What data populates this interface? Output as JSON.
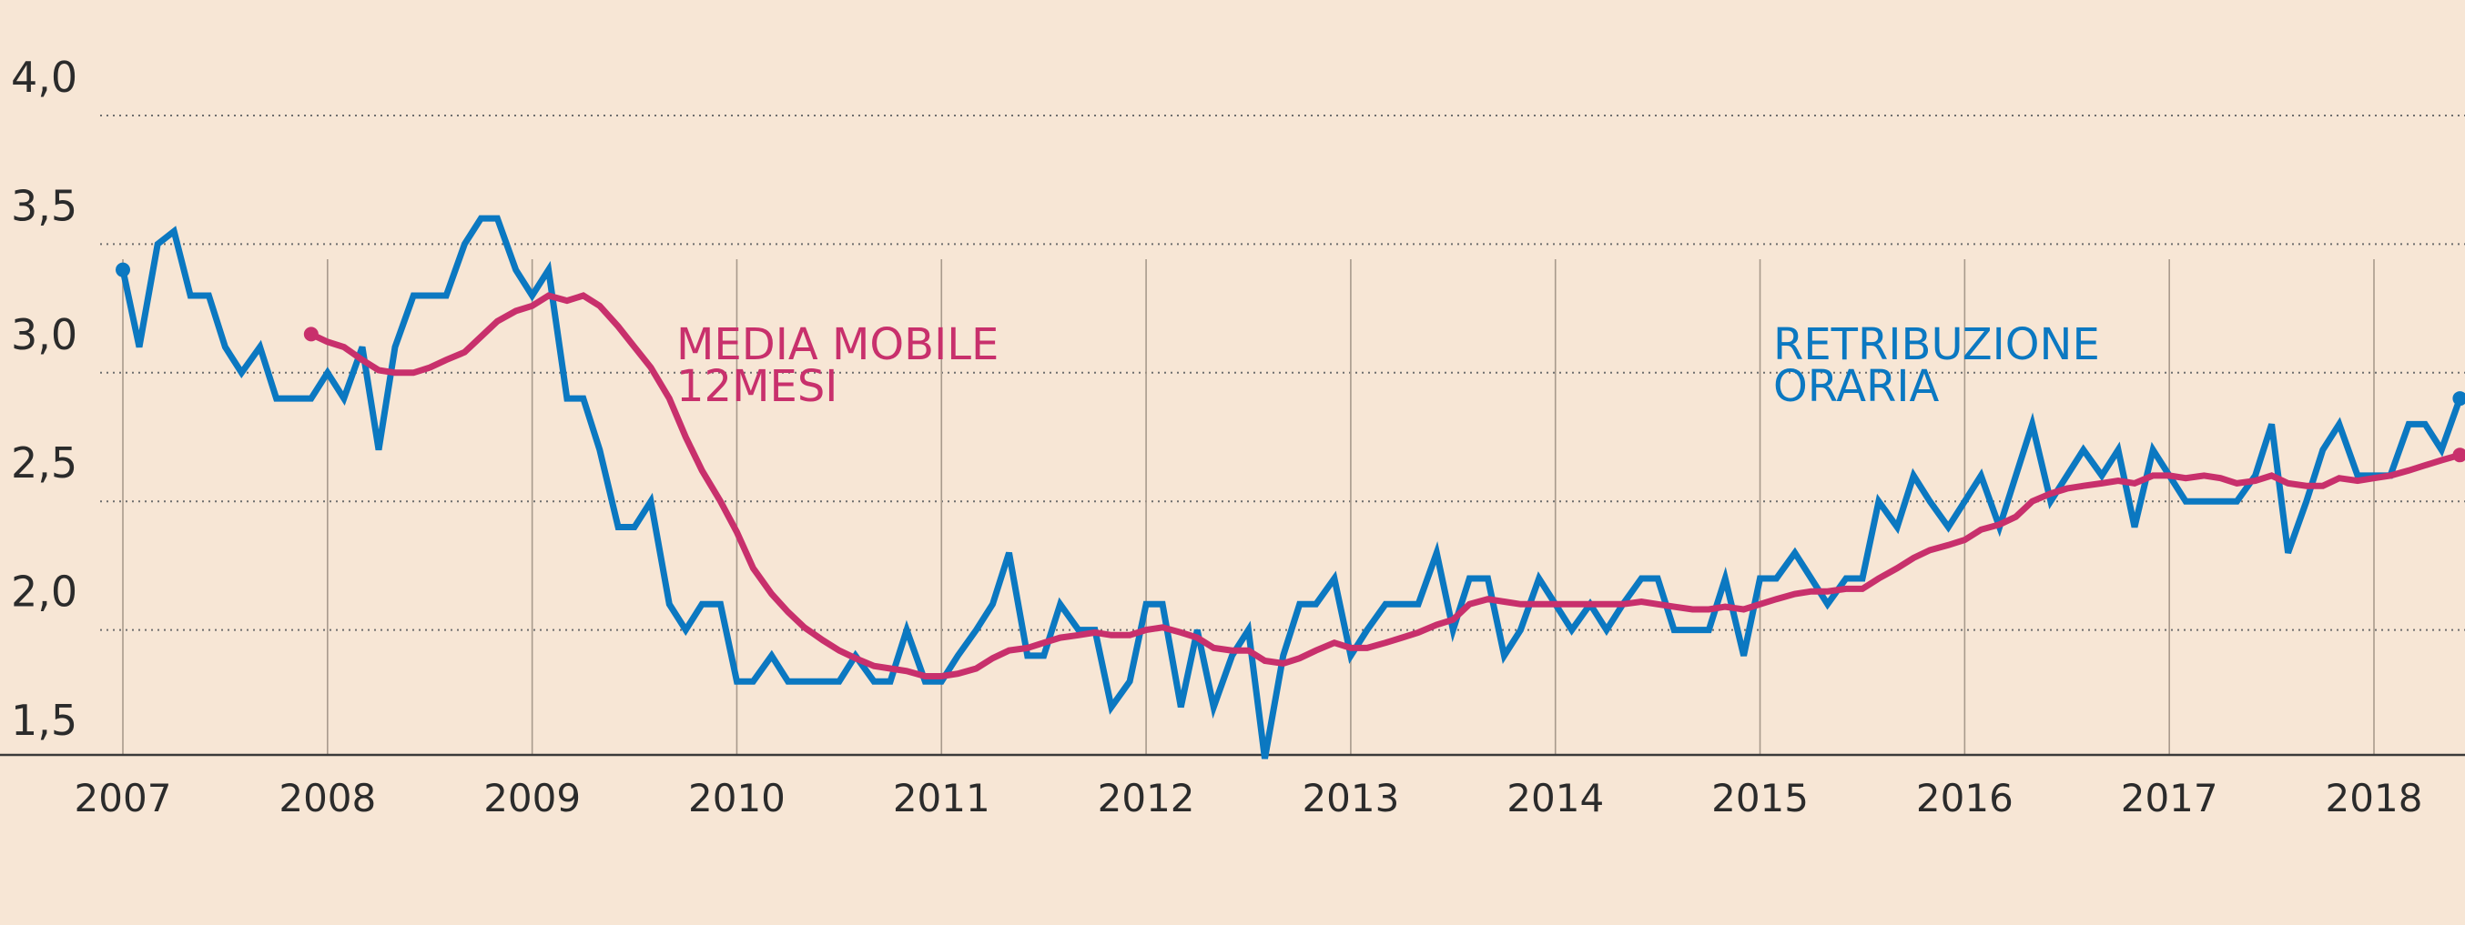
{
  "chart_data": {
    "type": "line",
    "title": "",
    "xlabel": "",
    "ylabel": "",
    "xlim": [
      2007,
      2018
    ],
    "ylim": [
      1.5,
      4.0
    ],
    "grid": true,
    "y_ticks": [
      {
        "value": 4.0,
        "label": "4,0"
      },
      {
        "value": 3.5,
        "label": "3,5"
      },
      {
        "value": 3.0,
        "label": "3,0"
      },
      {
        "value": 2.5,
        "label": "2,5"
      },
      {
        "value": 2.0,
        "label": "2,0"
      },
      {
        "value": 1.5,
        "label": "1,5"
      }
    ],
    "x_ticks": [
      {
        "value": 2007,
        "label": "2007"
      },
      {
        "value": 2008,
        "label": "2008"
      },
      {
        "value": 2009,
        "label": "2009"
      },
      {
        "value": 2010,
        "label": "2010"
      },
      {
        "value": 2011,
        "label": "2011"
      },
      {
        "value": 2012,
        "label": "2012"
      },
      {
        "value": 2013,
        "label": "2013"
      },
      {
        "value": 2014,
        "label": "2014"
      },
      {
        "value": 2015,
        "label": "2015"
      },
      {
        "value": 2016,
        "label": "2016"
      },
      {
        "value": 2017,
        "label": "2017"
      },
      {
        "value": 2018,
        "label": "2018"
      }
    ],
    "series": [
      {
        "name": "RETRIBUZIONE ORARIA",
        "label_lines": [
          "RETRIBUZIONE",
          "ORARIA"
        ],
        "color": "#0b78c1",
        "points": [
          [
            2007.0,
            3.4
          ],
          [
            2007.08,
            3.1
          ],
          [
            2007.17,
            3.5
          ],
          [
            2007.25,
            3.55
          ],
          [
            2007.33,
            3.3
          ],
          [
            2007.42,
            3.3
          ],
          [
            2007.5,
            3.1
          ],
          [
            2007.58,
            3.0
          ],
          [
            2007.67,
            3.1
          ],
          [
            2007.75,
            2.9
          ],
          [
            2007.83,
            2.9
          ],
          [
            2007.92,
            2.9
          ],
          [
            2008.0,
            3.0
          ],
          [
            2008.08,
            2.9
          ],
          [
            2008.17,
            3.1
          ],
          [
            2008.25,
            2.7
          ],
          [
            2008.33,
            3.1
          ],
          [
            2008.42,
            3.3
          ],
          [
            2008.5,
            3.3
          ],
          [
            2008.58,
            3.3
          ],
          [
            2008.67,
            3.5
          ],
          [
            2008.75,
            3.6
          ],
          [
            2008.83,
            3.6
          ],
          [
            2008.92,
            3.4
          ],
          [
            2009.0,
            3.3
          ],
          [
            2009.08,
            3.4
          ],
          [
            2009.17,
            2.9
          ],
          [
            2009.25,
            2.9
          ],
          [
            2009.33,
            2.7
          ],
          [
            2009.42,
            2.4
          ],
          [
            2009.5,
            2.4
          ],
          [
            2009.58,
            2.5
          ],
          [
            2009.67,
            2.1
          ],
          [
            2009.75,
            2.0
          ],
          [
            2009.83,
            2.1
          ],
          [
            2009.92,
            2.1
          ],
          [
            2010.0,
            1.8
          ],
          [
            2010.08,
            1.8
          ],
          [
            2010.17,
            1.9
          ],
          [
            2010.25,
            1.8
          ],
          [
            2010.33,
            1.8
          ],
          [
            2010.42,
            1.8
          ],
          [
            2010.5,
            1.8
          ],
          [
            2010.58,
            1.9
          ],
          [
            2010.67,
            1.8
          ],
          [
            2010.75,
            1.8
          ],
          [
            2010.83,
            2.0
          ],
          [
            2010.92,
            1.8
          ],
          [
            2011.0,
            1.8
          ],
          [
            2011.08,
            1.9
          ],
          [
            2011.17,
            2.0
          ],
          [
            2011.25,
            2.1
          ],
          [
            2011.33,
            2.3
          ],
          [
            2011.42,
            1.9
          ],
          [
            2011.5,
            1.9
          ],
          [
            2011.58,
            2.1
          ],
          [
            2011.67,
            2.0
          ],
          [
            2011.75,
            2.0
          ],
          [
            2011.83,
            1.7
          ],
          [
            2011.92,
            1.8
          ],
          [
            2012.0,
            2.1
          ],
          [
            2012.08,
            2.1
          ],
          [
            2012.17,
            1.7
          ],
          [
            2012.25,
            2.0
          ],
          [
            2012.33,
            1.7
          ],
          [
            2012.42,
            1.9
          ],
          [
            2012.5,
            2.0
          ],
          [
            2012.58,
            1.5
          ],
          [
            2012.67,
            1.9
          ],
          [
            2012.75,
            2.1
          ],
          [
            2012.83,
            2.1
          ],
          [
            2012.92,
            2.2
          ],
          [
            2013.0,
            1.9
          ],
          [
            2013.08,
            2.0
          ],
          [
            2013.17,
            2.1
          ],
          [
            2013.25,
            2.1
          ],
          [
            2013.33,
            2.1
          ],
          [
            2013.42,
            2.3
          ],
          [
            2013.5,
            2.0
          ],
          [
            2013.58,
            2.2
          ],
          [
            2013.67,
            2.2
          ],
          [
            2013.75,
            1.9
          ],
          [
            2013.83,
            2.0
          ],
          [
            2013.92,
            2.2
          ],
          [
            2014.0,
            2.1
          ],
          [
            2014.08,
            2.0
          ],
          [
            2014.17,
            2.1
          ],
          [
            2014.25,
            2.0
          ],
          [
            2014.33,
            2.1
          ],
          [
            2014.42,
            2.2
          ],
          [
            2014.5,
            2.2
          ],
          [
            2014.58,
            2.0
          ],
          [
            2014.67,
            2.0
          ],
          [
            2014.75,
            2.0
          ],
          [
            2014.83,
            2.2
          ],
          [
            2014.92,
            1.9
          ],
          [
            2015.0,
            2.2
          ],
          [
            2015.08,
            2.2
          ],
          [
            2015.17,
            2.3
          ],
          [
            2015.25,
            2.2
          ],
          [
            2015.33,
            2.1
          ],
          [
            2015.42,
            2.2
          ],
          [
            2015.5,
            2.2
          ],
          [
            2015.58,
            2.5
          ],
          [
            2015.67,
            2.4
          ],
          [
            2015.75,
            2.6
          ],
          [
            2015.83,
            2.5
          ],
          [
            2015.92,
            2.4
          ],
          [
            2016.0,
            2.5
          ],
          [
            2016.08,
            2.6
          ],
          [
            2016.17,
            2.4
          ],
          [
            2016.25,
            2.6
          ],
          [
            2016.33,
            2.8
          ],
          [
            2016.42,
            2.5
          ],
          [
            2016.5,
            2.6
          ],
          [
            2016.58,
            2.7
          ],
          [
            2016.67,
            2.6
          ],
          [
            2016.75,
            2.7
          ],
          [
            2016.83,
            2.4
          ],
          [
            2016.92,
            2.7
          ],
          [
            2017.0,
            2.6
          ],
          [
            2017.08,
            2.5
          ],
          [
            2017.17,
            2.5
          ],
          [
            2017.25,
            2.5
          ],
          [
            2017.33,
            2.5
          ],
          [
            2017.42,
            2.6
          ],
          [
            2017.5,
            2.8
          ],
          [
            2017.58,
            2.3
          ],
          [
            2017.67,
            2.5
          ],
          [
            2017.75,
            2.7
          ],
          [
            2017.83,
            2.8
          ],
          [
            2017.92,
            2.6
          ],
          [
            2018.0,
            2.6
          ],
          [
            2018.08,
            2.6
          ],
          [
            2018.17,
            2.8
          ],
          [
            2018.25,
            2.8
          ],
          [
            2018.33,
            2.7
          ],
          [
            2018.42,
            2.9
          ]
        ]
      },
      {
        "name": "MEDIA MOBILE 12MESI",
        "label_lines": [
          "MEDIA MOBILE",
          "12MESI"
        ],
        "color": "#c8306c",
        "points": [
          [
            2007.92,
            3.15
          ],
          [
            2008.0,
            3.12
          ],
          [
            2008.08,
            3.1
          ],
          [
            2008.17,
            3.05
          ],
          [
            2008.25,
            3.01
          ],
          [
            2008.33,
            3.0
          ],
          [
            2008.42,
            3.0
          ],
          [
            2008.5,
            3.02
          ],
          [
            2008.58,
            3.05
          ],
          [
            2008.67,
            3.08
          ],
          [
            2008.75,
            3.14
          ],
          [
            2008.83,
            3.2
          ],
          [
            2008.92,
            3.24
          ],
          [
            2009.0,
            3.26
          ],
          [
            2009.08,
            3.3
          ],
          [
            2009.17,
            3.28
          ],
          [
            2009.25,
            3.3
          ],
          [
            2009.33,
            3.26
          ],
          [
            2009.42,
            3.18
          ],
          [
            2009.5,
            3.1
          ],
          [
            2009.58,
            3.02
          ],
          [
            2009.67,
            2.9
          ],
          [
            2009.75,
            2.75
          ],
          [
            2009.83,
            2.62
          ],
          [
            2009.92,
            2.5
          ],
          [
            2010.0,
            2.38
          ],
          [
            2010.08,
            2.24
          ],
          [
            2010.17,
            2.14
          ],
          [
            2010.25,
            2.07
          ],
          [
            2010.33,
            2.01
          ],
          [
            2010.42,
            1.96
          ],
          [
            2010.5,
            1.92
          ],
          [
            2010.58,
            1.89
          ],
          [
            2010.67,
            1.86
          ],
          [
            2010.75,
            1.85
          ],
          [
            2010.83,
            1.84
          ],
          [
            2010.92,
            1.82
          ],
          [
            2011.0,
            1.82
          ],
          [
            2011.08,
            1.83
          ],
          [
            2011.17,
            1.85
          ],
          [
            2011.25,
            1.89
          ],
          [
            2011.33,
            1.92
          ],
          [
            2011.42,
            1.93
          ],
          [
            2011.5,
            1.95
          ],
          [
            2011.58,
            1.97
          ],
          [
            2011.67,
            1.98
          ],
          [
            2011.75,
            1.99
          ],
          [
            2011.83,
            1.98
          ],
          [
            2011.92,
            1.98
          ],
          [
            2012.0,
            2.0
          ],
          [
            2012.08,
            2.01
          ],
          [
            2012.17,
            1.99
          ],
          [
            2012.25,
            1.97
          ],
          [
            2012.33,
            1.93
          ],
          [
            2012.42,
            1.92
          ],
          [
            2012.5,
            1.92
          ],
          [
            2012.58,
            1.88
          ],
          [
            2012.67,
            1.87
          ],
          [
            2012.75,
            1.89
          ],
          [
            2012.83,
            1.92
          ],
          [
            2012.92,
            1.95
          ],
          [
            2013.0,
            1.93
          ],
          [
            2013.08,
            1.93
          ],
          [
            2013.17,
            1.95
          ],
          [
            2013.25,
            1.97
          ],
          [
            2013.33,
            1.99
          ],
          [
            2013.42,
            2.02
          ],
          [
            2013.5,
            2.04
          ],
          [
            2013.58,
            2.1
          ],
          [
            2013.67,
            2.12
          ],
          [
            2013.75,
            2.11
          ],
          [
            2013.83,
            2.1
          ],
          [
            2013.92,
            2.1
          ],
          [
            2014.0,
            2.1
          ],
          [
            2014.08,
            2.1
          ],
          [
            2014.17,
            2.1
          ],
          [
            2014.25,
            2.1
          ],
          [
            2014.33,
            2.1
          ],
          [
            2014.42,
            2.11
          ],
          [
            2014.5,
            2.1
          ],
          [
            2014.58,
            2.09
          ],
          [
            2014.67,
            2.08
          ],
          [
            2014.75,
            2.08
          ],
          [
            2014.83,
            2.09
          ],
          [
            2014.92,
            2.08
          ],
          [
            2015.0,
            2.1
          ],
          [
            2015.08,
            2.12
          ],
          [
            2015.17,
            2.14
          ],
          [
            2015.25,
            2.15
          ],
          [
            2015.33,
            2.15
          ],
          [
            2015.42,
            2.16
          ],
          [
            2015.5,
            2.16
          ],
          [
            2015.58,
            2.2
          ],
          [
            2015.67,
            2.24
          ],
          [
            2015.75,
            2.28
          ],
          [
            2015.83,
            2.31
          ],
          [
            2015.92,
            2.33
          ],
          [
            2016.0,
            2.35
          ],
          [
            2016.08,
            2.39
          ],
          [
            2016.17,
            2.41
          ],
          [
            2016.25,
            2.44
          ],
          [
            2016.33,
            2.5
          ],
          [
            2016.42,
            2.53
          ],
          [
            2016.5,
            2.55
          ],
          [
            2016.58,
            2.56
          ],
          [
            2016.67,
            2.57
          ],
          [
            2016.75,
            2.58
          ],
          [
            2016.83,
            2.57
          ],
          [
            2016.92,
            2.6
          ],
          [
            2017.0,
            2.6
          ],
          [
            2017.08,
            2.59
          ],
          [
            2017.17,
            2.6
          ],
          [
            2017.25,
            2.59
          ],
          [
            2017.33,
            2.57
          ],
          [
            2017.42,
            2.58
          ],
          [
            2017.5,
            2.6
          ],
          [
            2017.58,
            2.57
          ],
          [
            2017.67,
            2.56
          ],
          [
            2017.75,
            2.56
          ],
          [
            2017.83,
            2.59
          ],
          [
            2017.92,
            2.58
          ],
          [
            2018.0,
            2.59
          ],
          [
            2018.08,
            2.6
          ],
          [
            2018.17,
            2.62
          ],
          [
            2018.25,
            2.64
          ],
          [
            2018.33,
            2.66
          ],
          [
            2018.42,
            2.68
          ]
        ]
      }
    ],
    "colors": {
      "background": "#f7e6d5",
      "gridline": "#6e6e6e",
      "axis": "#3a3a3a"
    }
  }
}
